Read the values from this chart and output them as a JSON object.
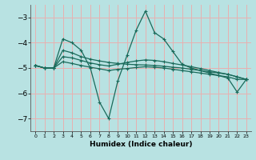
{
  "xlabel": "Humidex (Indice chaleur)",
  "xlim": [
    -0.5,
    23.5
  ],
  "ylim": [
    -7.5,
    -2.5
  ],
  "yticks": [
    -7,
    -6,
    -5,
    -4,
    -3
  ],
  "xticks": [
    0,
    1,
    2,
    3,
    4,
    5,
    6,
    7,
    8,
    9,
    10,
    11,
    12,
    13,
    14,
    15,
    16,
    17,
    18,
    19,
    20,
    21,
    22,
    23
  ],
  "bg_color": "#b8e2e2",
  "grid_color": "#e8b0b0",
  "line_color": "#1a6a5a",
  "line1_x": [
    0,
    1,
    2,
    3,
    4,
    5,
    6,
    7,
    8,
    9,
    10,
    11,
    12,
    13,
    14,
    15,
    16,
    17,
    18,
    19,
    20,
    21,
    22,
    23
  ],
  "line1_y": [
    -4.9,
    -5.0,
    -5.0,
    -3.85,
    -4.0,
    -4.3,
    -5.0,
    -6.35,
    -7.0,
    -5.5,
    -4.5,
    -3.5,
    -2.75,
    -3.6,
    -3.85,
    -4.35,
    -4.85,
    -5.0,
    -5.1,
    -5.2,
    -5.3,
    -5.4,
    -5.95,
    -5.45
  ],
  "line2_x": [
    0,
    1,
    2,
    3,
    4,
    5,
    6,
    7,
    8,
    9,
    10,
    11,
    12,
    13,
    14,
    15,
    16,
    17,
    18,
    19,
    20,
    21,
    22,
    23
  ],
  "line2_y": [
    -4.9,
    -5.0,
    -5.0,
    -4.3,
    -4.4,
    -4.55,
    -4.65,
    -4.72,
    -4.78,
    -4.82,
    -4.85,
    -4.87,
    -4.88,
    -4.9,
    -4.93,
    -4.97,
    -5.0,
    -5.05,
    -5.1,
    -5.15,
    -5.2,
    -5.25,
    -5.35,
    -5.45
  ],
  "line3_x": [
    0,
    1,
    2,
    3,
    4,
    5,
    6,
    7,
    8,
    9,
    10,
    11,
    12,
    13,
    14,
    15,
    16,
    17,
    18,
    19,
    20,
    21,
    22,
    23
  ],
  "line3_y": [
    -4.9,
    -5.0,
    -5.0,
    -4.55,
    -4.6,
    -4.7,
    -4.8,
    -4.87,
    -4.92,
    -4.85,
    -4.78,
    -4.72,
    -4.68,
    -4.7,
    -4.75,
    -4.82,
    -4.88,
    -4.95,
    -5.02,
    -5.1,
    -5.18,
    -5.25,
    -5.35,
    -5.45
  ],
  "line4_x": [
    0,
    1,
    2,
    3,
    4,
    5,
    6,
    7,
    8,
    9,
    10,
    11,
    12,
    13,
    14,
    15,
    16,
    17,
    18,
    19,
    20,
    21,
    22,
    23
  ],
  "line4_y": [
    -4.9,
    -5.0,
    -5.0,
    -4.75,
    -4.82,
    -4.9,
    -4.97,
    -5.03,
    -5.1,
    -5.05,
    -5.02,
    -4.98,
    -4.95,
    -4.97,
    -5.0,
    -5.05,
    -5.1,
    -5.15,
    -5.2,
    -5.25,
    -5.3,
    -5.35,
    -5.45,
    -5.45
  ]
}
